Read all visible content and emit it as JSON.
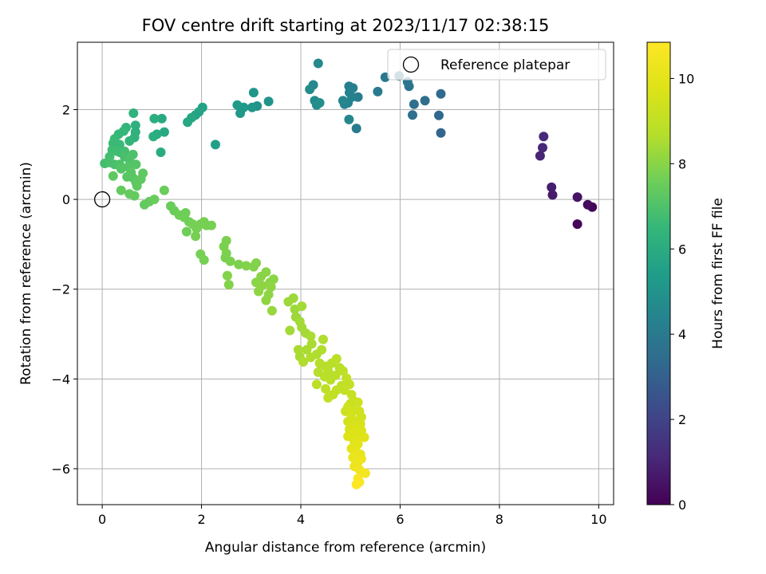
{
  "chart_data": {
    "type": "scatter",
    "title": "FOV centre drift starting at 2023/11/17 02:38:15",
    "xlabel": "Angular distance from reference (arcmin)",
    "ylabel": "Rotation from reference (arcmin)",
    "xlim": [
      -0.5,
      10.3
    ],
    "ylim": [
      -6.8,
      3.5
    ],
    "xticks": [
      0,
      2,
      4,
      6,
      8,
      10
    ],
    "yticks": [
      -6,
      -4,
      -2,
      0,
      2
    ],
    "grid": true,
    "colorbar": {
      "label": "Hours from first FF file",
      "range": [
        0,
        10.85
      ],
      "ticks": [
        0,
        2,
        4,
        6,
        8,
        10
      ],
      "colormap": "viridis"
    },
    "legend": {
      "position": "top-right",
      "entries": [
        {
          "label": "Reference platepar",
          "marker": "open-circle",
          "x": 0,
          "y": 0
        }
      ]
    },
    "series": [
      {
        "points": [
          [
            9.57,
            -0.55,
            0.1
          ],
          [
            9.87,
            -0.17,
            0.15
          ],
          [
            9.78,
            -0.12,
            0.3
          ],
          [
            9.57,
            0.05,
            0.5
          ],
          [
            9.07,
            0.1,
            0.7
          ],
          [
            9.05,
            0.27,
            0.8
          ],
          [
            8.82,
            0.97,
            1.0
          ],
          [
            8.87,
            1.15,
            1.1
          ],
          [
            8.89,
            1.4,
            1.2
          ],
          [
            6.82,
            1.48,
            3.2
          ],
          [
            6.78,
            1.87,
            3.3
          ],
          [
            6.82,
            2.35,
            3.4
          ],
          [
            6.5,
            2.2,
            3.5
          ],
          [
            6.28,
            2.12,
            3.6
          ],
          [
            6.25,
            1.88,
            3.6
          ],
          [
            6.18,
            2.52,
            3.7
          ],
          [
            6.15,
            2.62,
            3.8
          ],
          [
            5.98,
            2.75,
            3.8
          ],
          [
            5.7,
            2.72,
            3.9
          ],
          [
            5.55,
            2.4,
            4.0
          ],
          [
            5.12,
            1.58,
            4.1
          ],
          [
            5.15,
            2.28,
            4.1
          ],
          [
            5.05,
            2.48,
            4.2
          ],
          [
            4.97,
            2.52,
            4.2
          ],
          [
            4.98,
            2.38,
            4.3
          ],
          [
            5.03,
            2.28,
            4.3
          ],
          [
            4.95,
            2.15,
            4.4
          ],
          [
            4.88,
            2.12,
            4.4
          ],
          [
            4.85,
            2.2,
            4.5
          ],
          [
            4.97,
            1.78,
            4.5
          ],
          [
            4.35,
            3.03,
            4.6
          ],
          [
            4.25,
            2.55,
            4.6
          ],
          [
            4.18,
            2.45,
            4.7
          ],
          [
            4.28,
            2.2,
            4.7
          ],
          [
            4.38,
            2.15,
            4.8
          ],
          [
            4.32,
            2.1,
            4.8
          ],
          [
            3.35,
            2.18,
            5.0
          ],
          [
            3.12,
            2.08,
            5.0
          ],
          [
            3.05,
            2.38,
            5.1
          ],
          [
            3.02,
            2.05,
            5.1
          ],
          [
            2.85,
            2.05,
            5.2
          ],
          [
            2.78,
            1.92,
            5.2
          ],
          [
            2.72,
            2.1,
            5.3
          ],
          [
            2.28,
            1.22,
            5.5
          ],
          [
            2.02,
            2.05,
            5.6
          ],
          [
            1.95,
            1.95,
            5.7
          ],
          [
            1.88,
            1.88,
            5.7
          ],
          [
            1.8,
            1.82,
            5.8
          ],
          [
            1.72,
            1.72,
            5.8
          ],
          [
            1.25,
            1.5,
            5.9
          ],
          [
            1.2,
            1.8,
            5.9
          ],
          [
            1.18,
            1.05,
            6.0
          ],
          [
            1.1,
            1.45,
            6.0
          ],
          [
            1.05,
            1.8,
            6.1
          ],
          [
            1.03,
            1.4,
            6.1
          ],
          [
            0.67,
            1.65,
            6.2
          ],
          [
            0.67,
            1.5,
            6.2
          ],
          [
            0.63,
            1.92,
            6.3
          ],
          [
            0.65,
            1.38,
            6.3
          ],
          [
            0.55,
            1.3,
            6.4
          ],
          [
            0.48,
            1.6,
            6.4
          ],
          [
            0.43,
            1.52,
            6.5
          ],
          [
            0.33,
            1.45,
            6.5
          ],
          [
            0.25,
            1.35,
            6.6
          ],
          [
            0.22,
            1.25,
            6.6
          ],
          [
            0.35,
            1.22,
            6.6
          ],
          [
            0.2,
            1.1,
            6.7
          ],
          [
            0.27,
            1.08,
            6.7
          ],
          [
            0.35,
            1.05,
            6.7
          ],
          [
            0.45,
            1.07,
            6.8
          ],
          [
            0.15,
            0.95,
            6.8
          ],
          [
            0.05,
            0.8,
            6.8
          ],
          [
            0.15,
            0.82,
            6.9
          ],
          [
            0.25,
            0.78,
            6.9
          ],
          [
            0.45,
            0.95,
            6.9
          ],
          [
            0.55,
            0.88,
            7.0
          ],
          [
            0.62,
            1.0,
            7.0
          ],
          [
            0.35,
            0.78,
            7.0
          ],
          [
            0.38,
            0.68,
            7.1
          ],
          [
            0.52,
            0.72,
            7.1
          ],
          [
            0.68,
            0.78,
            7.1
          ],
          [
            0.58,
            0.6,
            7.2
          ],
          [
            0.5,
            0.5,
            7.2
          ],
          [
            0.62,
            0.48,
            7.2
          ],
          [
            0.68,
            0.38,
            7.3
          ],
          [
            0.7,
            0.3,
            7.3
          ],
          [
            0.78,
            0.45,
            7.3
          ],
          [
            0.82,
            0.58,
            7.3
          ],
          [
            0.22,
            0.52,
            7.3
          ],
          [
            0.38,
            0.2,
            7.4
          ],
          [
            0.55,
            0.12,
            7.4
          ],
          [
            0.65,
            0.08,
            7.4
          ],
          [
            0.85,
            -0.12,
            7.4
          ],
          [
            0.95,
            -0.05,
            7.4
          ],
          [
            1.05,
            0.0,
            7.5
          ],
          [
            1.25,
            0.2,
            7.5
          ],
          [
            1.38,
            -0.15,
            7.5
          ],
          [
            1.45,
            -0.25,
            7.5
          ],
          [
            1.55,
            -0.35,
            7.6
          ],
          [
            1.65,
            -0.4,
            7.6
          ],
          [
            1.68,
            -0.3,
            7.6
          ],
          [
            1.75,
            -0.5,
            7.6
          ],
          [
            1.7,
            -0.72,
            7.6
          ],
          [
            1.82,
            -0.55,
            7.7
          ],
          [
            1.9,
            -0.65,
            7.7
          ],
          [
            1.98,
            -0.55,
            7.7
          ],
          [
            2.05,
            -0.5,
            7.7
          ],
          [
            2.1,
            -0.58,
            7.7
          ],
          [
            2.2,
            -0.58,
            7.7
          ],
          [
            1.88,
            -0.82,
            7.7
          ],
          [
            1.98,
            -1.22,
            7.7
          ],
          [
            2.05,
            -1.35,
            7.7
          ],
          [
            2.5,
            -0.92,
            7.8
          ],
          [
            2.45,
            -1.05,
            7.8
          ],
          [
            2.5,
            -1.2,
            7.8
          ],
          [
            2.58,
            -1.38,
            7.8
          ],
          [
            2.48,
            -1.3,
            7.8
          ],
          [
            2.75,
            -1.45,
            7.8
          ],
          [
            2.9,
            -1.48,
            7.9
          ],
          [
            3.05,
            -1.5,
            7.9
          ],
          [
            3.1,
            -1.42,
            7.9
          ],
          [
            2.52,
            -1.7,
            7.9
          ],
          [
            2.55,
            -1.9,
            7.9
          ],
          [
            3.1,
            -1.85,
            8.0
          ],
          [
            3.2,
            -1.72,
            8.0
          ],
          [
            3.3,
            -1.62,
            8.0
          ],
          [
            3.38,
            -1.85,
            8.0
          ],
          [
            3.45,
            -1.78,
            8.0
          ],
          [
            3.4,
            -1.95,
            8.1
          ],
          [
            3.22,
            -1.92,
            8.1
          ],
          [
            3.15,
            -2.05,
            8.1
          ],
          [
            3.35,
            -2.12,
            8.1
          ],
          [
            3.3,
            -2.25,
            8.1
          ],
          [
            3.42,
            -2.48,
            8.2
          ],
          [
            3.75,
            -2.28,
            8.3
          ],
          [
            3.85,
            -2.2,
            8.3
          ],
          [
            3.88,
            -2.45,
            8.3
          ],
          [
            3.9,
            -2.62,
            8.3
          ],
          [
            4.02,
            -2.38,
            8.4
          ],
          [
            3.98,
            -2.72,
            8.4
          ],
          [
            4.02,
            -2.85,
            8.4
          ],
          [
            3.78,
            -2.92,
            8.4
          ],
          [
            4.1,
            -2.98,
            8.4
          ],
          [
            4.2,
            -3.05,
            8.5
          ],
          [
            4.22,
            -3.22,
            8.5
          ],
          [
            4.12,
            -3.35,
            8.5
          ],
          [
            3.95,
            -3.35,
            8.5
          ],
          [
            3.98,
            -3.5,
            8.5
          ],
          [
            4.05,
            -3.62,
            8.6
          ],
          [
            4.2,
            -3.52,
            8.6
          ],
          [
            4.32,
            -3.45,
            8.6
          ],
          [
            4.42,
            -3.35,
            8.6
          ],
          [
            4.45,
            -3.12,
            8.6
          ],
          [
            4.38,
            -3.65,
            8.7
          ],
          [
            4.35,
            -3.85,
            8.7
          ],
          [
            4.5,
            -3.72,
            8.7
          ],
          [
            4.62,
            -3.65,
            8.7
          ],
          [
            4.55,
            -3.82,
            8.8
          ],
          [
            4.48,
            -3.95,
            8.8
          ],
          [
            4.6,
            -4.02,
            8.8
          ],
          [
            4.7,
            -3.92,
            8.8
          ],
          [
            4.78,
            -3.75,
            8.8
          ],
          [
            4.72,
            -3.55,
            8.9
          ],
          [
            4.85,
            -3.82,
            8.9
          ],
          [
            4.32,
            -4.12,
            8.9
          ],
          [
            4.5,
            -4.22,
            8.9
          ],
          [
            4.55,
            -4.42,
            9.0
          ],
          [
            4.65,
            -4.35,
            9.0
          ],
          [
            4.72,
            -4.25,
            9.0
          ],
          [
            4.82,
            -4.15,
            9.0
          ],
          [
            4.92,
            -3.98,
            9.1
          ],
          [
            4.98,
            -4.12,
            9.1
          ],
          [
            4.88,
            -4.25,
            9.1
          ],
          [
            5.02,
            -4.35,
            9.2
          ],
          [
            5.0,
            -4.55,
            9.2
          ],
          [
            5.08,
            -4.5,
            9.2
          ],
          [
            5.15,
            -4.52,
            9.3
          ],
          [
            4.95,
            -4.62,
            9.3
          ],
          [
            4.9,
            -4.72,
            9.3
          ],
          [
            5.05,
            -4.7,
            9.4
          ],
          [
            5.18,
            -4.72,
            9.4
          ],
          [
            5.22,
            -4.85,
            9.4
          ],
          [
            5.02,
            -4.85,
            9.5
          ],
          [
            4.95,
            -4.95,
            9.5
          ],
          [
            5.1,
            -4.95,
            9.5
          ],
          [
            5.2,
            -5.0,
            9.6
          ],
          [
            5.05,
            -5.05,
            9.6
          ],
          [
            4.98,
            -5.12,
            9.6
          ],
          [
            5.12,
            -5.12,
            9.7
          ],
          [
            5.22,
            -5.15,
            9.7
          ],
          [
            5.05,
            -5.22,
            9.8
          ],
          [
            4.95,
            -5.28,
            9.8
          ],
          [
            5.18,
            -5.28,
            9.8
          ],
          [
            5.28,
            -5.3,
            9.9
          ],
          [
            5.08,
            -5.4,
            9.9
          ],
          [
            5.15,
            -5.45,
            10.0
          ],
          [
            5.02,
            -5.55,
            10.0
          ],
          [
            5.12,
            -5.62,
            10.1
          ],
          [
            5.2,
            -5.68,
            10.1
          ],
          [
            5.05,
            -5.75,
            10.2
          ],
          [
            5.22,
            -5.78,
            10.2
          ],
          [
            5.15,
            -5.85,
            10.3
          ],
          [
            5.08,
            -5.95,
            10.3
          ],
          [
            5.18,
            -6.02,
            10.4
          ],
          [
            5.3,
            -6.1,
            10.5
          ],
          [
            5.15,
            -6.22,
            10.6
          ],
          [
            5.18,
            -6.3,
            10.7
          ],
          [
            5.12,
            -6.35,
            10.8
          ]
        ]
      }
    ]
  }
}
